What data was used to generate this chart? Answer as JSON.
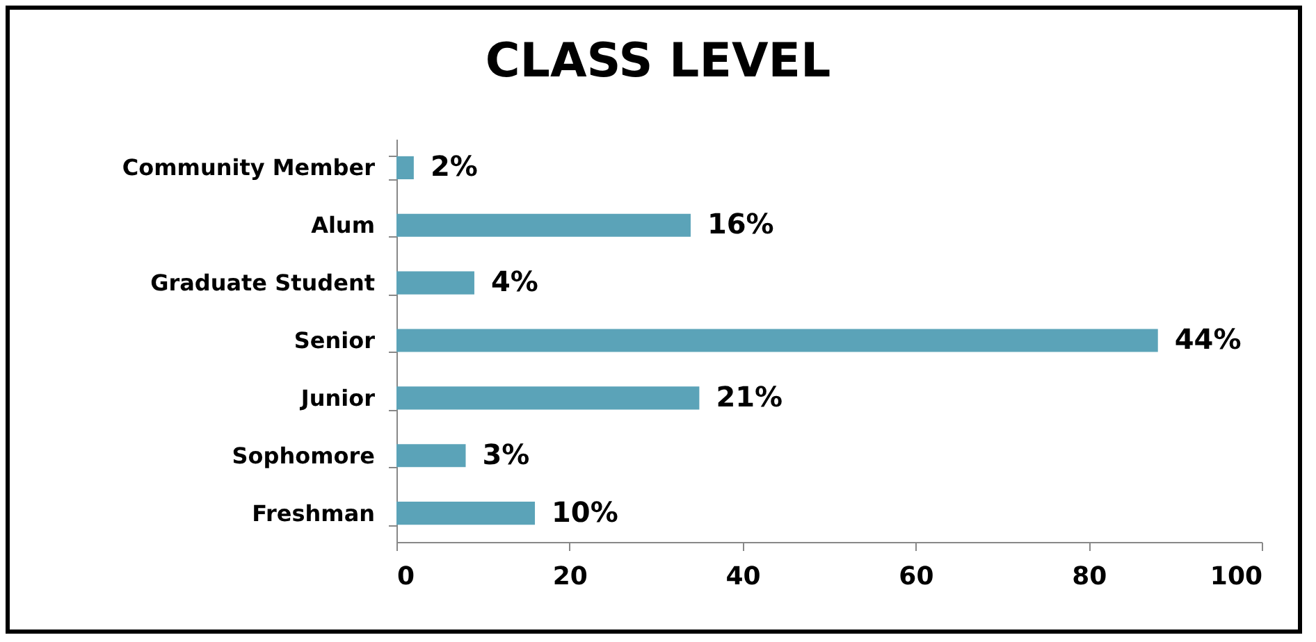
{
  "chart_data": {
    "type": "bar",
    "orientation": "horizontal",
    "title": "CLASS LEVEL",
    "categories": [
      "Community Member",
      "Alum",
      "Graduate Student",
      "Senior",
      "Junior",
      "Sophomore",
      "Freshman"
    ],
    "values": [
      2,
      34,
      9,
      88,
      35,
      8,
      16
    ],
    "annotations": [
      {
        "text": "2%",
        "x": 2,
        "y": "Community Member"
      },
      {
        "text": "16%",
        "x": 34,
        "y": "Alum"
      },
      {
        "text": "4%",
        "x": 9,
        "y": "Graduate Student"
      },
      {
        "text": "44%",
        "x": 88,
        "y": "Senior"
      },
      {
        "text": "21%",
        "x": 35,
        "y": "Junior"
      },
      {
        "text": "3%",
        "x": 8,
        "y": "Sophomore"
      },
      {
        "text": "10%",
        "x": 16,
        "y": "Freshman"
      }
    ],
    "color": "#5ba3b8",
    "xlim": [
      0,
      100
    ],
    "xticks": [
      0,
      20,
      40,
      60,
      80,
      100
    ],
    "grid": false
  }
}
